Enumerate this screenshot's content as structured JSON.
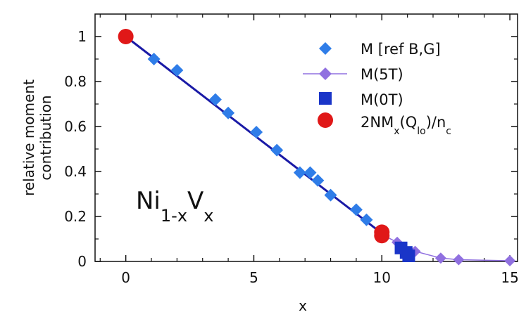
{
  "chart_data": {
    "type": "scatter",
    "xlabel": "x",
    "ylabel_lines": [
      "relative moment",
      "contribution"
    ],
    "xlim": [
      -1.2,
      15.3
    ],
    "ylim": [
      0,
      1.1
    ],
    "xticks": [
      "0",
      "5",
      "10",
      "15"
    ],
    "xtick_values": [
      0,
      5,
      10,
      15
    ],
    "yticks": [
      "0",
      "0.2",
      "0.4",
      "0.6",
      "0.8",
      "1"
    ],
    "ytick_values": [
      0,
      0.2,
      0.4,
      0.6,
      0.8,
      1.0
    ],
    "fit_line": {
      "x": [
        0,
        10.0
      ],
      "y": [
        1.0,
        0.125
      ],
      "color": "#1a1aa6"
    },
    "series": [
      {
        "name": "M [ref B,G]",
        "marker": "diamond",
        "color": "#2f7de8",
        "x": [
          1.1,
          2.0,
          3.5,
          4.0,
          5.1,
          5.9,
          6.8,
          7.2,
          7.5,
          8.0,
          9.0,
          9.4
        ],
        "y": [
          0.9,
          0.85,
          0.72,
          0.66,
          0.575,
          0.495,
          0.395,
          0.395,
          0.36,
          0.295,
          0.23,
          0.185
        ]
      },
      {
        "name": "M(5T)",
        "marker": "diamond-line",
        "color": "#9070e0",
        "x": [
          10.0,
          10.6,
          11.3,
          12.3,
          13.0,
          15.0
        ],
        "y": [
          0.12,
          0.085,
          0.045,
          0.015,
          0.008,
          0.003
        ]
      },
      {
        "name": "M(0T)",
        "marker": "square",
        "color": "#1a35c8",
        "x": [
          10.75,
          10.95,
          11.05
        ],
        "y": [
          0.06,
          0.04,
          0.025
        ]
      },
      {
        "name_parts": [
          "2NM",
          "x",
          "(Q",
          "lo",
          ")/n",
          "c"
        ],
        "marker": "circle",
        "color": "#e01818",
        "x": [
          0.0,
          10.0,
          10.0
        ],
        "y": [
          1.0,
          0.13,
          0.115
        ]
      }
    ],
    "annotation_parts": [
      "Ni",
      "1-x",
      "V",
      "x"
    ]
  }
}
